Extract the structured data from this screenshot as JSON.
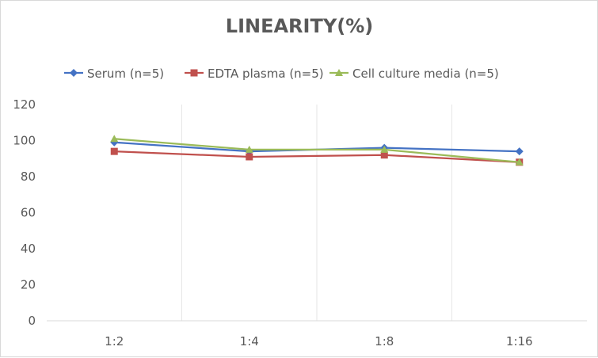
{
  "chart_data": {
    "type": "line",
    "title": "LINEARITY(%)",
    "categories": [
      "1:2",
      "1:4",
      "1:8",
      "1:16"
    ],
    "ylim": [
      0,
      120
    ],
    "yticks": [
      0,
      20,
      40,
      60,
      80,
      100,
      120
    ],
    "grid": "vertical",
    "legend": "top",
    "series": [
      {
        "name": "Serum (n=5)",
        "values": [
          99,
          94,
          96,
          94
        ],
        "color": "#4472c4",
        "marker": "diamond"
      },
      {
        "name": "EDTA plasma (n=5)",
        "values": [
          94,
          91,
          92,
          88
        ],
        "color": "#c0504d",
        "marker": "square"
      },
      {
        "name": "Cell culture media (n=5)",
        "values": [
          101,
          95,
          95,
          88
        ],
        "color": "#9bbb59",
        "marker": "triangle"
      }
    ]
  }
}
